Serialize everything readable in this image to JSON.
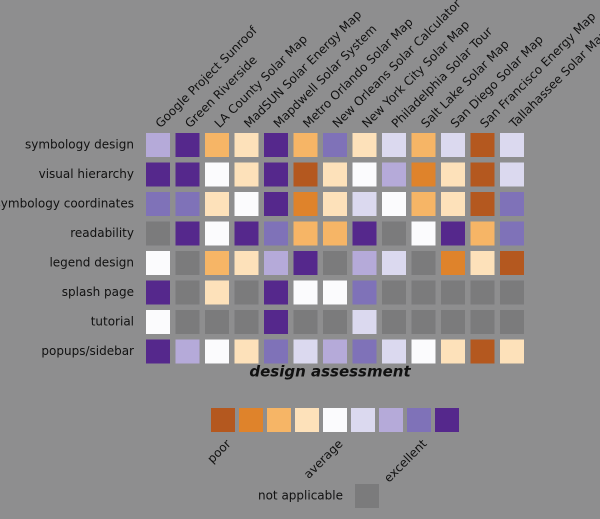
{
  "chart_data": {
    "type": "heatmap",
    "title": "design assessment",
    "x": [
      "Google Project Sunroof",
      "Green Riverside",
      "LA County Solar Map",
      "MadSUN Solar Energy Map",
      "Mapdwell Solar System",
      "Metro Orlando Solar Map",
      "New Orleans Solar Calculator",
      "New York City Solar Map",
      "Philadelphia Solar Tour",
      "Salt Lake Solar Map",
      "San Diego Solar Map",
      "San Francisco Energy Map",
      "Tallahassee Solar Map"
    ],
    "y": [
      "symbology design",
      "visual hierarchy",
      "symbology coordinates",
      "readability",
      "legend design",
      "splash page",
      "tutorial",
      "popups/sidebar"
    ],
    "values": [
      [
        2,
        4,
        -2,
        -1,
        4,
        -2,
        3,
        -1,
        1,
        -2,
        1,
        -4,
        1
      ],
      [
        4,
        4,
        0,
        -1,
        4,
        -4,
        -1,
        0,
        2,
        -3,
        -1,
        -4,
        1
      ],
      [
        3,
        3,
        -1,
        0,
        4,
        -3,
        -1,
        1,
        0,
        -2,
        -1,
        -4,
        3
      ],
      [
        null,
        4,
        0,
        4,
        3,
        -2,
        -2,
        4,
        null,
        0,
        4,
        -2,
        3
      ],
      [
        0,
        null,
        -2,
        -1,
        2,
        4,
        null,
        2,
        1,
        null,
        -3,
        -1,
        -4
      ],
      [
        4,
        null,
        -1,
        null,
        4,
        0,
        0,
        3,
        null,
        null,
        null,
        null,
        null
      ],
      [
        0,
        null,
        null,
        null,
        4,
        null,
        null,
        1,
        null,
        null,
        null,
        null,
        null
      ],
      [
        4,
        2,
        0,
        -1,
        3,
        1,
        2,
        3,
        1,
        0,
        -1,
        -4,
        -1
      ]
    ],
    "legend": {
      "levels": [
        -4,
        -3,
        -2,
        -1,
        0,
        1,
        2,
        3,
        4
      ],
      "colors": [
        "#b4581f",
        "#df832b",
        "#f6b566",
        "#fde1ba",
        "#fbfbfd",
        "#dbd9ef",
        "#b5aad9",
        "#7f72b8",
        "#55288c"
      ],
      "labels": [
        {
          "value": -4,
          "label": "poor"
        },
        {
          "value": 0,
          "label": "average"
        },
        {
          "value": 3,
          "label": "excellent"
        }
      ],
      "na_label": "not applicable",
      "na_color": "#7b7b7c"
    }
  }
}
